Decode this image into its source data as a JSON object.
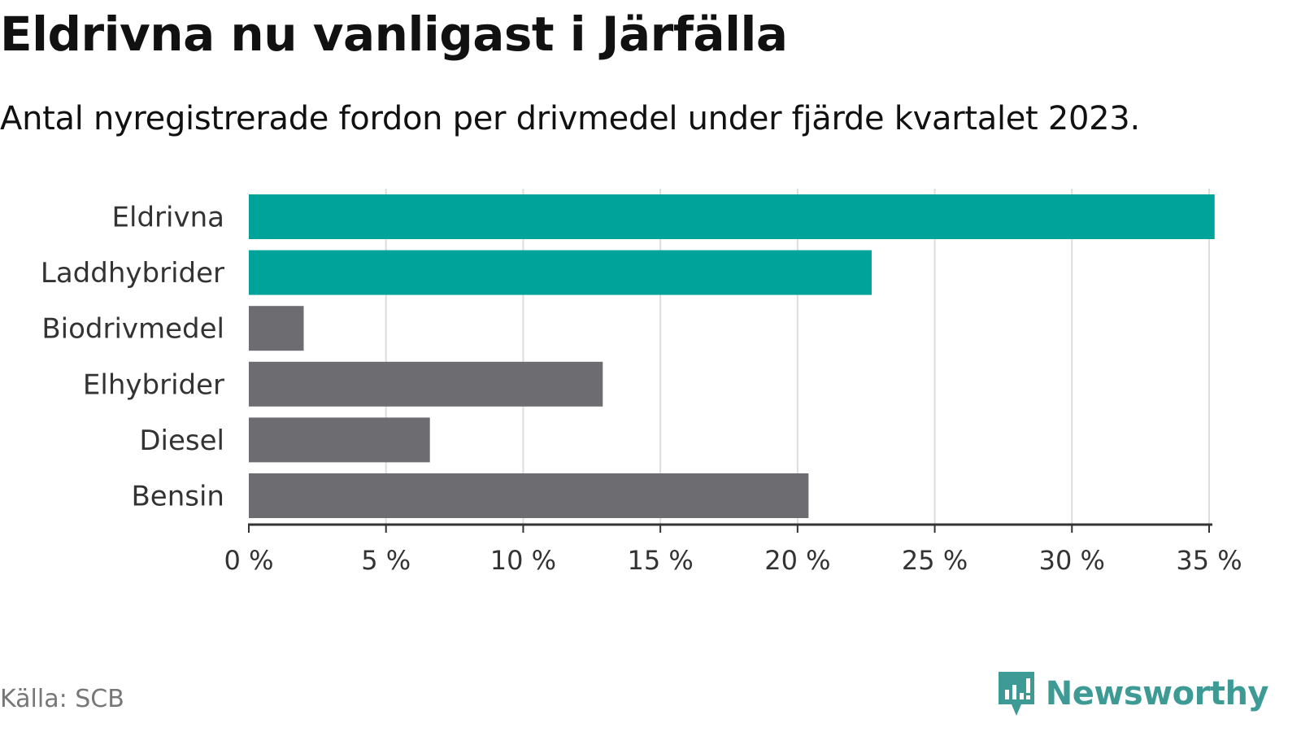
{
  "title": "Eldrivna nu vanligast i Järfälla",
  "subtitle": "Antal nyregistrerade fordon per drivmedel under fjärde kvartalet 2023.",
  "source": "Källa: SCB",
  "brand": {
    "name": "Newsworthy",
    "icon": "newsworthy-logo-icon",
    "color": "#3d9a95"
  },
  "colors": {
    "highlight": "#00a39a",
    "default": "#6d6c71",
    "grid": "#dddddd",
    "axis": "#333333"
  },
  "chart_data": {
    "type": "bar",
    "orientation": "horizontal",
    "title": "Eldrivna nu vanligast i Järfälla",
    "subtitle": "Antal nyregistrerade fordon per drivmedel under fjärde kvartalet 2023.",
    "categories": [
      "Eldrivna",
      "Laddhybrider",
      "Biodrivmedel",
      "Elhybrider",
      "Diesel",
      "Bensin"
    ],
    "values": [
      35.2,
      22.7,
      2.0,
      12.9,
      6.6,
      20.4
    ],
    "highlighted": [
      true,
      true,
      false,
      false,
      false,
      false
    ],
    "xlim": [
      0,
      35
    ],
    "xticks": [
      0,
      5,
      10,
      15,
      20,
      25,
      30,
      35
    ],
    "xtick_labels": [
      "0 %",
      "5 %",
      "10 %",
      "15 %",
      "20 %",
      "25 %",
      "30 %",
      "35 %"
    ],
    "xlabel": "",
    "ylabel": "",
    "grid": "vertical",
    "unit": "%"
  }
}
